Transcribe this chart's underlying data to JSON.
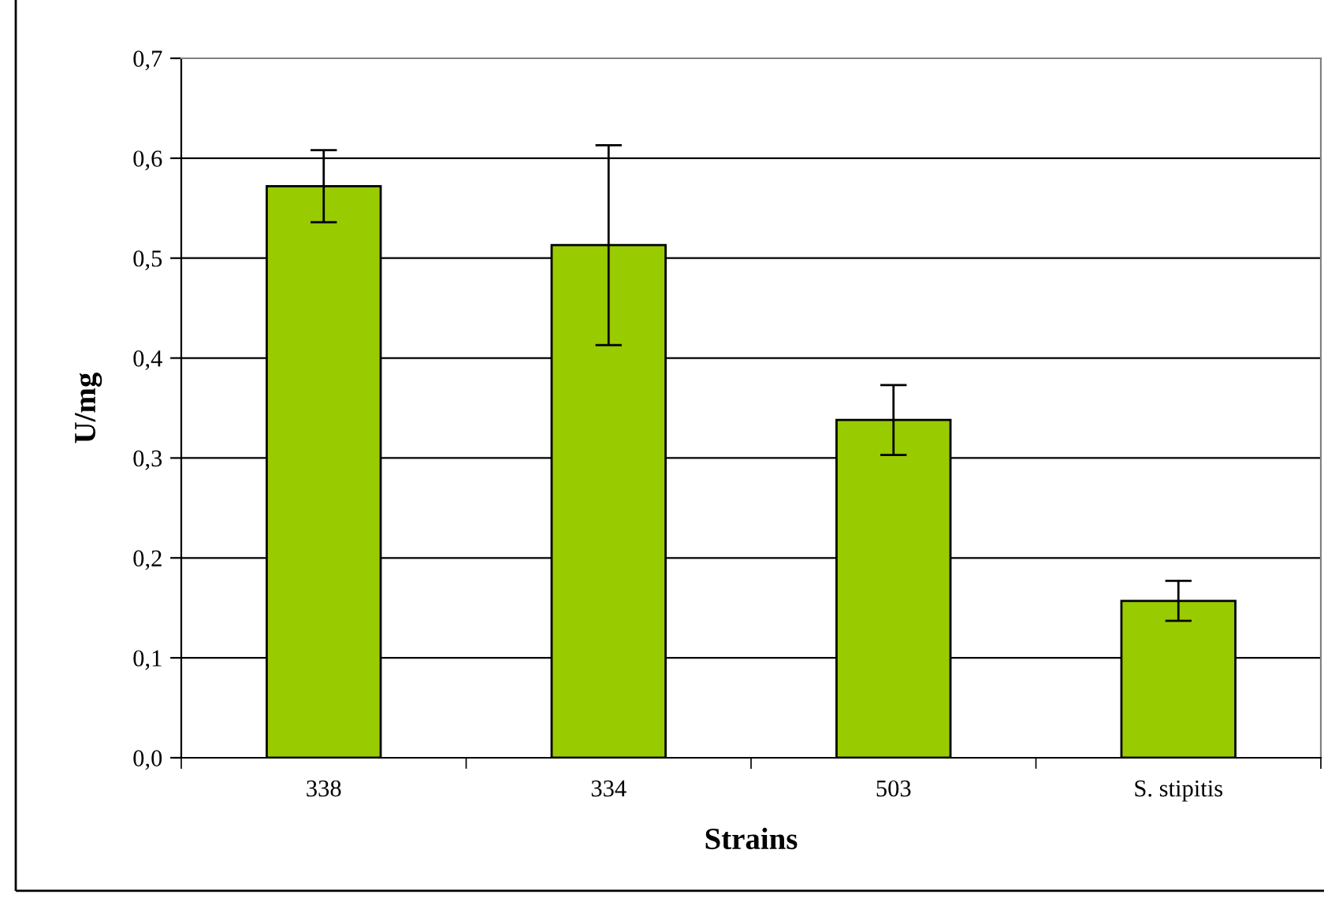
{
  "chart_data": {
    "type": "bar",
    "xlabel": "Strains",
    "ylabel": "U/mg",
    "categories": [
      "338",
      "334",
      "503",
      "S. stipitis"
    ],
    "values": [
      0.572,
      0.513,
      0.338,
      0.157
    ],
    "errors": [
      0.036,
      0.1,
      0.035,
      0.02
    ],
    "color": "#99cc00",
    "ylim": [
      0,
      0.7
    ],
    "yticks": [
      {
        "value": 0,
        "label": "0,0"
      },
      {
        "value": 0.1,
        "label": "0,1"
      },
      {
        "value": 0.2,
        "label": "0,2"
      },
      {
        "value": 0.3,
        "label": "0,3"
      },
      {
        "value": 0.4,
        "label": "0,4"
      },
      {
        "value": 0.5,
        "label": "0,5"
      },
      {
        "value": 0.6,
        "label": "0,6"
      },
      {
        "value": 0.7,
        "label": "0,7"
      }
    ],
    "grid": "y",
    "legend": false
  }
}
